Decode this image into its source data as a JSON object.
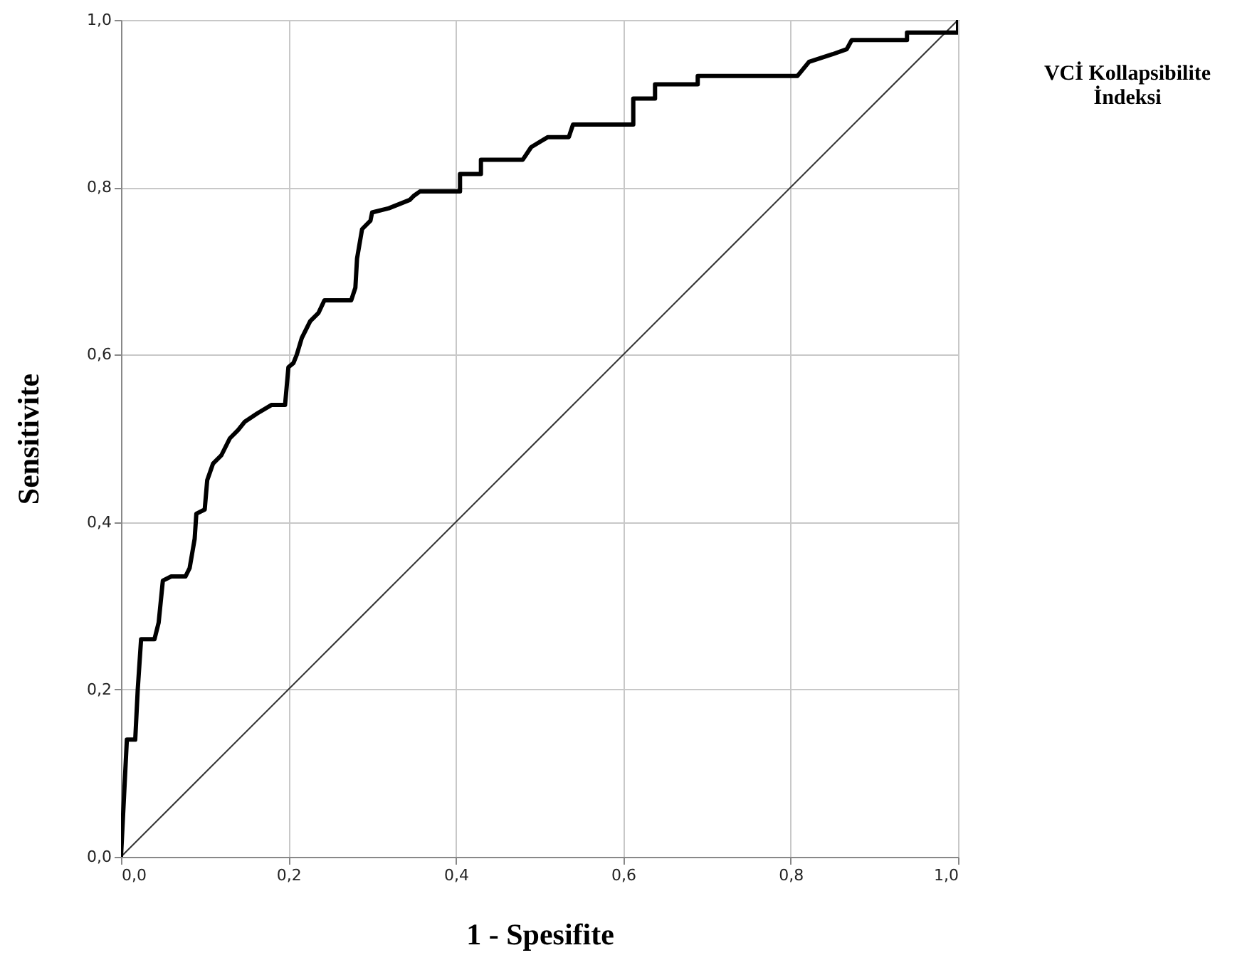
{
  "chart_data": {
    "type": "line",
    "xlabel": "1 - Spesifite",
    "ylabel": "Sensitivite",
    "annotations": [
      "VCİ Kollapsibilite İndeksi"
    ],
    "xlim": [
      0,
      1
    ],
    "ylim": [
      0,
      1
    ],
    "xticks": [
      {
        "value": 0,
        "label": "0,0"
      },
      {
        "value": 0.2,
        "label": "0,2"
      },
      {
        "value": 0.4,
        "label": "0,4"
      },
      {
        "value": 0.6,
        "label": "0,6"
      },
      {
        "value": 0.8,
        "label": "0,8"
      },
      {
        "value": 1,
        "label": "1,0"
      }
    ],
    "yticks": [
      {
        "value": 0,
        "label": "0,0"
      },
      {
        "value": 0.2,
        "label": "0,2"
      },
      {
        "value": 0.4,
        "label": "0,4"
      },
      {
        "value": 0.6,
        "label": "0,6"
      },
      {
        "value": 0.8,
        "label": "0,8"
      },
      {
        "value": 1,
        "label": "1,0"
      }
    ],
    "grid": true,
    "marker": "none",
    "line_style": "solid",
    "series": [
      {
        "color": "#000000",
        "x": [
          0,
          0.003,
          0.007,
          0.017,
          0.02,
          0.024,
          0.04,
          0.045,
          0.05,
          0.06,
          0.077,
          0.082,
          0.088,
          0.09,
          0.1,
          0.103,
          0.11,
          0.12,
          0.13,
          0.14,
          0.148,
          0.163,
          0.18,
          0.196,
          0.2,
          0.206,
          0.21,
          0.216,
          0.226,
          0.236,
          0.243,
          0.275,
          0.28,
          0.282,
          0.288,
          0.298,
          0.3,
          0.32,
          0.345,
          0.35,
          0.357,
          0.405,
          0.405,
          0.43,
          0.43,
          0.48,
          0.49,
          0.51,
          0.535,
          0.54,
          0.612,
          0.612,
          0.638,
          0.638,
          0.689,
          0.689,
          0.808,
          0.822,
          0.85,
          0.867,
          0.873,
          0.939,
          0.939,
          1.0,
          1.0
        ],
        "values": [
          0,
          0.06,
          0.14,
          0.14,
          0.2,
          0.26,
          0.26,
          0.28,
          0.33,
          0.335,
          0.335,
          0.345,
          0.38,
          0.41,
          0.415,
          0.45,
          0.47,
          0.48,
          0.5,
          0.51,
          0.52,
          0.53,
          0.54,
          0.54,
          0.585,
          0.59,
          0.6,
          0.62,
          0.64,
          0.65,
          0.665,
          0.665,
          0.68,
          0.715,
          0.75,
          0.76,
          0.77,
          0.775,
          0.785,
          0.79,
          0.795,
          0.795,
          0.816,
          0.816,
          0.833,
          0.833,
          0.848,
          0.86,
          0.86,
          0.875,
          0.875,
          0.906,
          0.906,
          0.923,
          0.923,
          0.933,
          0.933,
          0.95,
          0.959,
          0.965,
          0.976,
          0.976,
          0.985,
          0.985,
          1.0
        ]
      },
      {
        "type": "line",
        "color": "#333333",
        "x": [
          0,
          1
        ],
        "values": [
          0,
          1
        ]
      }
    ]
  }
}
